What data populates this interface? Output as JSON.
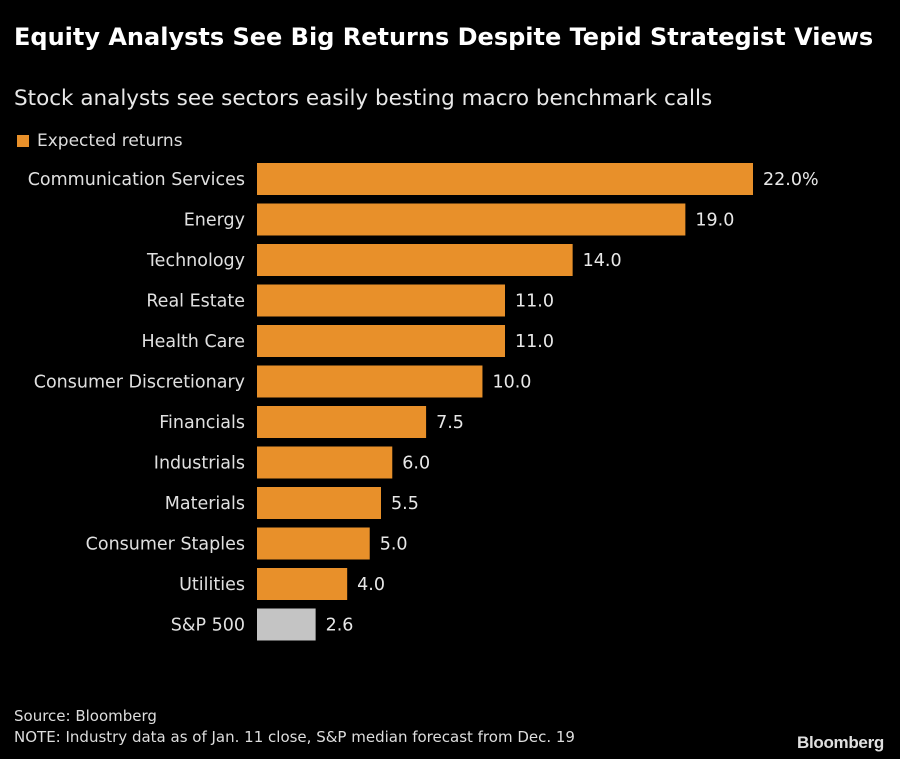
{
  "chart_data": {
    "type": "bar",
    "orientation": "horizontal",
    "title": "Equity Analysts See Big Returns Despite Tepid Strategist Views",
    "subtitle": "Stock analysts see sectors easily besting macro benchmark calls",
    "legend": [
      {
        "name": "Expected returns",
        "color": "#e8902a"
      }
    ],
    "legend_placement": "top-left",
    "categories": [
      "Communication Services",
      "Energy",
      "Technology",
      "Real Estate",
      "Health Care",
      "Consumer Discretionary",
      "Financials",
      "Industrials",
      "Materials",
      "Consumer Staples",
      "Utilities",
      "S&P 500"
    ],
    "values": [
      22.0,
      19.0,
      14.0,
      11.0,
      11.0,
      10.0,
      7.5,
      6.0,
      5.5,
      5.0,
      4.0,
      2.6
    ],
    "value_labels": [
      "22.0%",
      "19.0",
      "14.0",
      "11.0",
      "11.0",
      "10.0",
      "7.5",
      "6.0",
      "5.5",
      "5.0",
      "4.0",
      "2.6"
    ],
    "colors": [
      "#e8902a",
      "#e8902a",
      "#e8902a",
      "#e8902a",
      "#e8902a",
      "#e8902a",
      "#e8902a",
      "#e8902a",
      "#e8902a",
      "#e8902a",
      "#e8902a",
      "#c4c4c4"
    ],
    "xlim": [
      0,
      22
    ],
    "grid": false,
    "xlabel": "",
    "ylabel": ""
  },
  "footer": {
    "source": "Source: Bloomberg",
    "note": "NOTE: Industry data as of Jan. 11 close, S&P median forecast from Dec. 19",
    "logo": "Bloomberg"
  }
}
